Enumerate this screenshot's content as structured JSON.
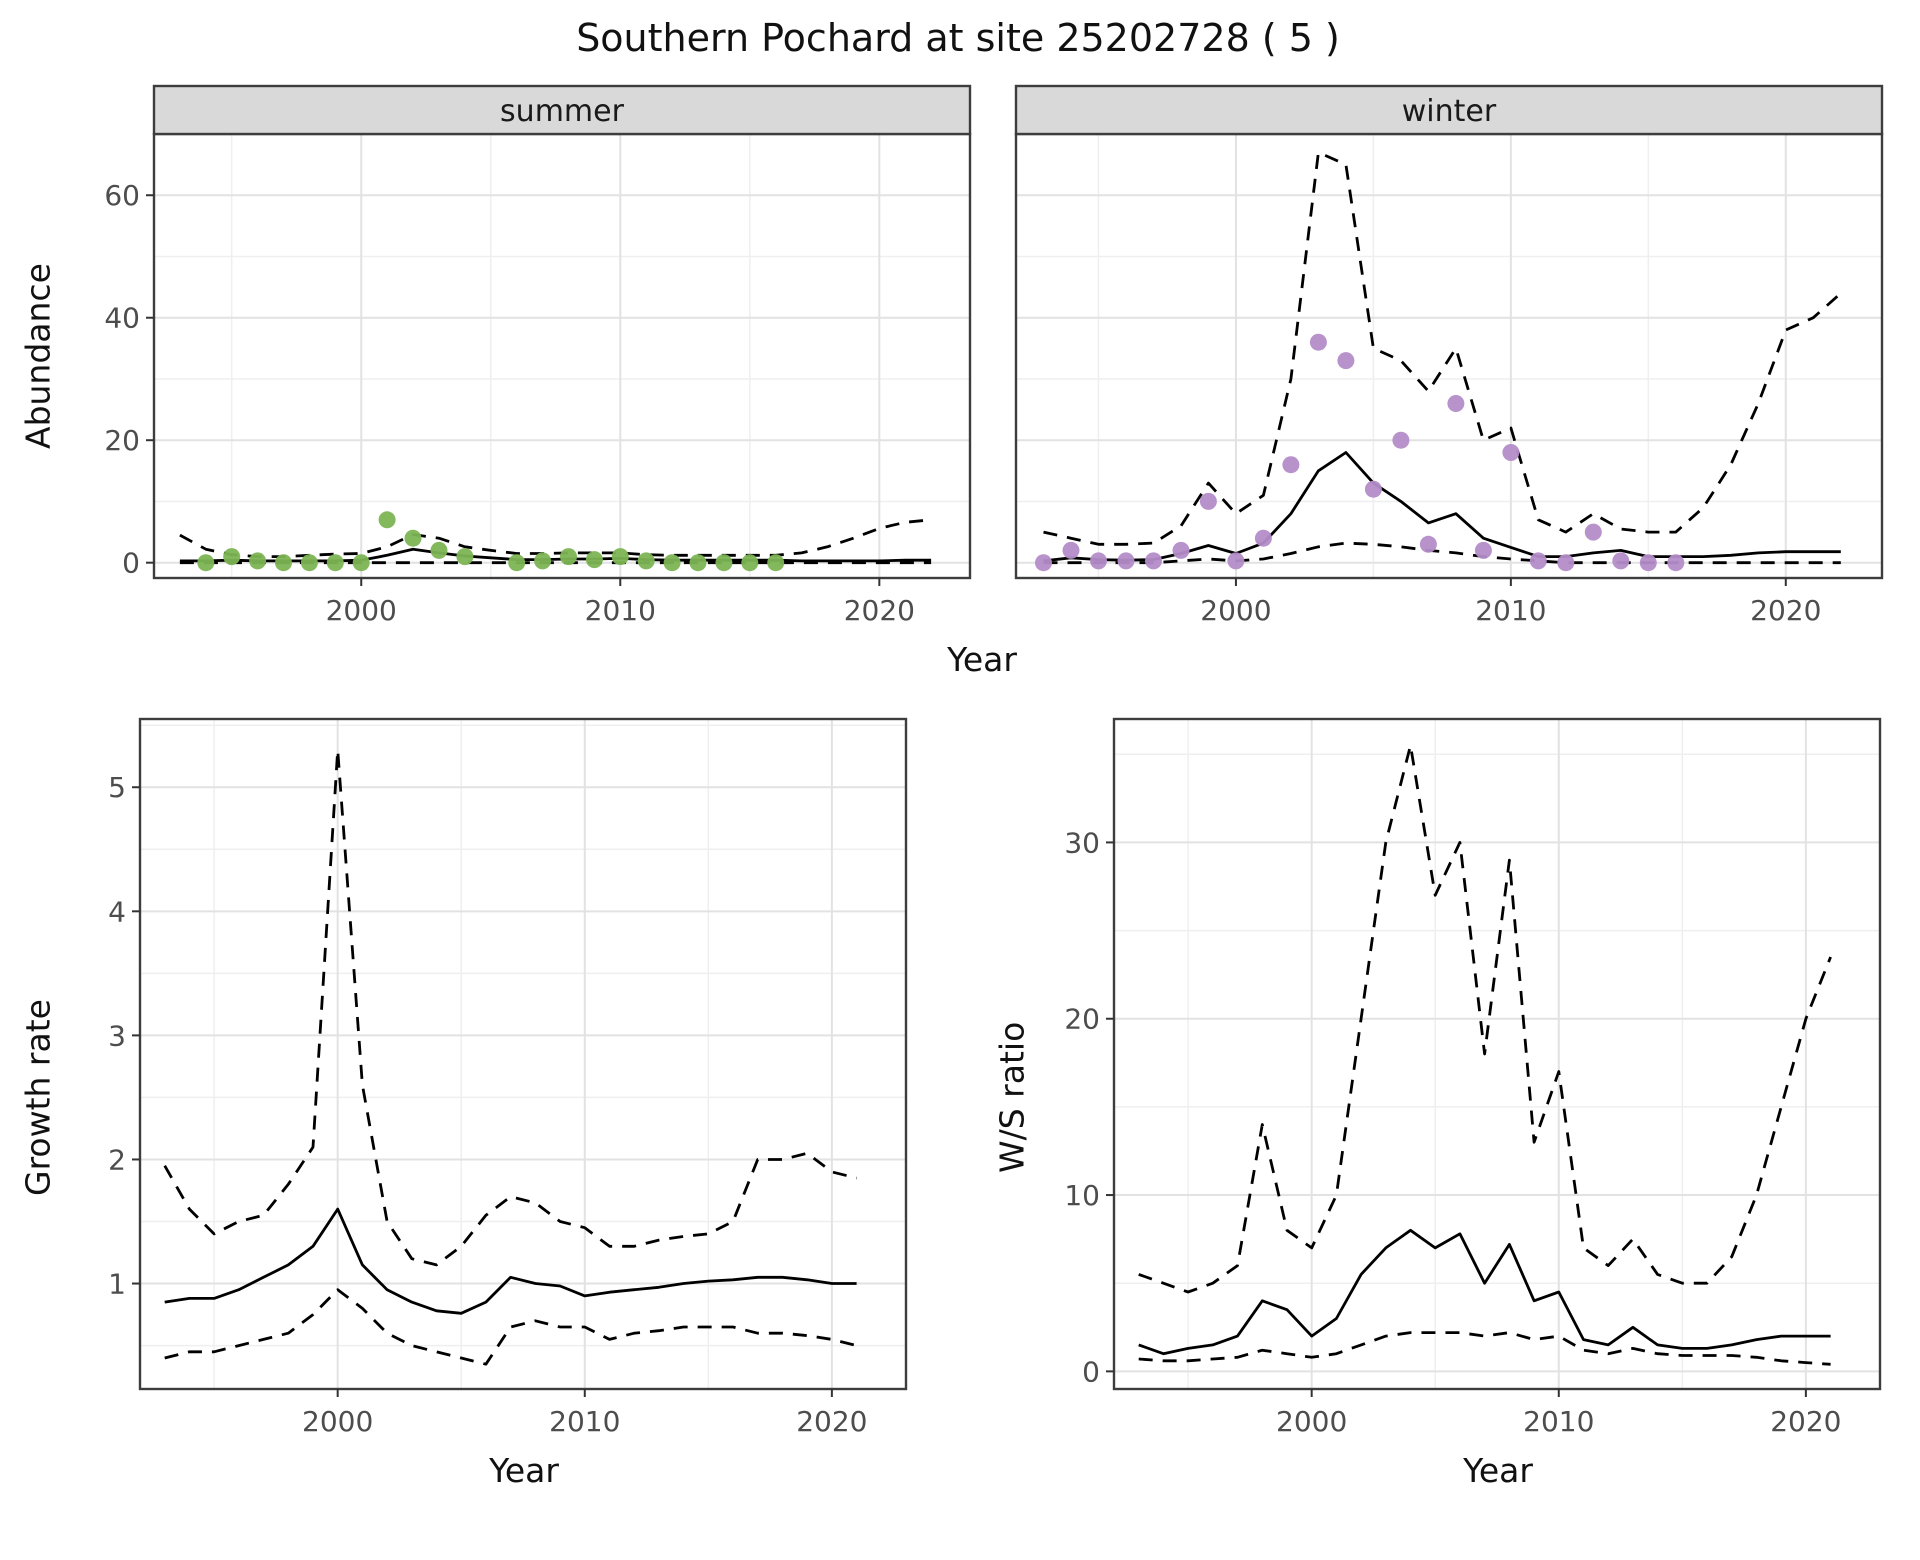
{
  "title": "Southern Pochard at site 25202728 ( 5 )",
  "colors": {
    "summer_points": "#7cb454",
    "winter_points": "#b48cc8",
    "line": "#000000",
    "grid_major": "#e2e2e2",
    "grid_minor": "#efefef",
    "strip_bg": "#d9d9d9",
    "panel_border": "#3d3d3d",
    "tick_text": "#4d4d4d"
  },
  "abundance": {
    "ylabel": "Abundance",
    "xlabel": "Year",
    "facets": [
      "summer",
      "winter"
    ]
  },
  "growth_rate": {
    "ylabel": "Growth rate",
    "xlabel": "Year"
  },
  "ws_ratio": {
    "ylabel": "W/S ratio",
    "xlabel": "Year"
  },
  "chart_data": [
    {
      "id": "summer",
      "type": "line",
      "facet_label": "summer",
      "ylabel": "Abundance",
      "xlabel": "Year",
      "xlim": [
        1992,
        2023.5
      ],
      "ylim": [
        -2.5,
        70
      ],
      "xticks": [
        2000,
        2010,
        2020
      ],
      "xminor": [
        1995,
        2005,
        2015
      ],
      "yticks": [
        0,
        20,
        40,
        60
      ],
      "yminor": [
        10,
        30,
        50
      ],
      "show_y_tick_labels": true,
      "x": [
        1993,
        1994,
        1995,
        1996,
        1997,
        1998,
        1999,
        2000,
        2001,
        2002,
        2003,
        2004,
        2005,
        2006,
        2007,
        2008,
        2009,
        2010,
        2011,
        2012,
        2013,
        2014,
        2015,
        2016,
        2017,
        2018,
        2019,
        2020,
        2021,
        2022
      ],
      "series": [
        {
          "name": "upper_ci",
          "style": "dashed",
          "values": [
            4.5,
            2.2,
            1.3,
            1.0,
            1.0,
            1.2,
            1.4,
            1.5,
            2.6,
            4.6,
            4.0,
            2.6,
            2.0,
            1.5,
            1.5,
            1.6,
            1.6,
            1.6,
            1.3,
            1.2,
            1.2,
            1.2,
            1.2,
            1.2,
            1.6,
            2.6,
            4.0,
            5.6,
            6.6,
            7.0
          ]
        },
        {
          "name": "median",
          "style": "solid",
          "values": [
            0.3,
            0.3,
            0.4,
            0.3,
            0.3,
            0.3,
            0.3,
            0.4,
            1.2,
            2.2,
            1.6,
            1.1,
            0.8,
            0.5,
            0.5,
            0.6,
            0.6,
            0.7,
            0.5,
            0.4,
            0.4,
            0.4,
            0.4,
            0.4,
            0.3,
            0.3,
            0.3,
            0.3,
            0.4,
            0.4
          ]
        },
        {
          "name": "lower_ci",
          "style": "dashed",
          "values": [
            0,
            0,
            0,
            0,
            0,
            0,
            0,
            0,
            0,
            0,
            0,
            0,
            0,
            0,
            0,
            0,
            0,
            0,
            0,
            0,
            0,
            0,
            0,
            0,
            0,
            0,
            0,
            0,
            0,
            0
          ]
        }
      ],
      "points": {
        "name": "observed",
        "color_key": "summer_points",
        "x": [
          1994,
          1995,
          1996,
          1997,
          1998,
          1999,
          2000,
          2001,
          2002,
          2003,
          2004,
          2006,
          2007,
          2008,
          2009,
          2010,
          2011,
          2012,
          2013,
          2014,
          2015,
          2016
        ],
        "y": [
          0,
          1,
          0.3,
          0,
          0,
          0,
          0,
          7,
          4,
          2,
          1,
          0,
          0.3,
          1,
          0.5,
          1,
          0.3,
          0,
          0,
          0,
          0,
          0
        ]
      }
    },
    {
      "id": "winter",
      "type": "line",
      "facet_label": "winter",
      "ylabel": "Abundance",
      "xlabel": "Year",
      "xlim": [
        1992,
        2023.5
      ],
      "ylim": [
        -2.5,
        70
      ],
      "xticks": [
        2000,
        2010,
        2020
      ],
      "xminor": [
        1995,
        2005,
        2015
      ],
      "yticks": [
        0,
        20,
        40,
        60
      ],
      "yminor": [
        10,
        30,
        50
      ],
      "show_y_tick_labels": false,
      "x": [
        1993,
        1994,
        1995,
        1996,
        1997,
        1998,
        1999,
        2000,
        2001,
        2002,
        2003,
        2004,
        2005,
        2006,
        2007,
        2008,
        2009,
        2010,
        2011,
        2012,
        2013,
        2014,
        2015,
        2016,
        2017,
        2018,
        2019,
        2020,
        2021,
        2022
      ],
      "series": [
        {
          "name": "upper_ci",
          "style": "dashed",
          "values": [
            5,
            4,
            3,
            3,
            3.2,
            6,
            13,
            8,
            11,
            30,
            67,
            65,
            35,
            33,
            28,
            35,
            20,
            22,
            7,
            5,
            8,
            5.5,
            5,
            5,
            9,
            16,
            26,
            38,
            40,
            44
          ]
        },
        {
          "name": "median",
          "style": "solid",
          "values": [
            0.3,
            0.8,
            0.5,
            0.4,
            0.5,
            1.5,
            2.8,
            1.5,
            3.2,
            8,
            15,
            18,
            13,
            10,
            6.5,
            8,
            4,
            2.5,
            1,
            1,
            1.6,
            2,
            1,
            1,
            1,
            1.2,
            1.6,
            1.8,
            1.8,
            1.8
          ]
        },
        {
          "name": "lower_ci",
          "style": "dashed",
          "values": [
            0,
            0,
            0,
            0,
            0,
            0.3,
            0.6,
            0.3,
            0.6,
            1.5,
            2.6,
            3.2,
            3,
            2.6,
            2,
            1.6,
            1,
            0.6,
            0.3,
            0,
            0,
            0,
            0,
            0,
            0,
            0,
            0,
            0,
            0,
            0
          ]
        }
      ],
      "points": {
        "name": "observed",
        "color_key": "winter_points",
        "x": [
          1993,
          1994,
          1995,
          1996,
          1997,
          1998,
          1999,
          2000,
          2001,
          2002,
          2003,
          2004,
          2005,
          2006,
          2007,
          2008,
          2009,
          2010,
          2011,
          2012,
          2013,
          2014,
          2015,
          2016
        ],
        "y": [
          0,
          2,
          0.3,
          0.3,
          0.3,
          2,
          10,
          0.3,
          4,
          16,
          36,
          33,
          12,
          20,
          3,
          26,
          2,
          18,
          0.3,
          0,
          5,
          0.3,
          0,
          0
        ]
      }
    },
    {
      "id": "growth",
      "type": "line",
      "facet_label": null,
      "ylabel": "Growth rate",
      "xlabel": "Year",
      "xlim": [
        1992,
        2023
      ],
      "ylim": [
        0.15,
        5.55
      ],
      "xticks": [
        2000,
        2010,
        2020
      ],
      "xminor": [
        1995,
        2005,
        2015
      ],
      "yticks": [
        1,
        2,
        3,
        4,
        5
      ],
      "yminor": [
        0.5,
        1.5,
        2.5,
        3.5,
        4.5,
        5.5
      ],
      "show_y_tick_labels": true,
      "x": [
        1993,
        1994,
        1995,
        1996,
        1997,
        1998,
        1999,
        2000,
        2001,
        2002,
        2003,
        2004,
        2005,
        2006,
        2007,
        2008,
        2009,
        2010,
        2011,
        2012,
        2013,
        2014,
        2015,
        2016,
        2017,
        2018,
        2019,
        2020,
        2021
      ],
      "series": [
        {
          "name": "upper_ci",
          "style": "dashed",
          "values": [
            1.95,
            1.6,
            1.4,
            1.5,
            1.55,
            1.8,
            2.1,
            5.3,
            2.6,
            1.5,
            1.2,
            1.15,
            1.3,
            1.55,
            1.7,
            1.65,
            1.5,
            1.45,
            1.3,
            1.3,
            1.35,
            1.38,
            1.4,
            1.5,
            2.0,
            2.0,
            2.05,
            1.9,
            1.85
          ]
        },
        {
          "name": "median",
          "style": "solid",
          "values": [
            0.85,
            0.88,
            0.88,
            0.95,
            1.05,
            1.15,
            1.3,
            1.6,
            1.15,
            0.95,
            0.85,
            0.78,
            0.76,
            0.85,
            1.05,
            1.0,
            0.98,
            0.9,
            0.93,
            0.95,
            0.97,
            1.0,
            1.02,
            1.03,
            1.05,
            1.05,
            1.03,
            1.0,
            1.0
          ]
        },
        {
          "name": "lower_ci",
          "style": "dashed",
          "values": [
            0.4,
            0.45,
            0.45,
            0.5,
            0.55,
            0.6,
            0.75,
            0.95,
            0.8,
            0.6,
            0.5,
            0.45,
            0.4,
            0.35,
            0.65,
            0.7,
            0.65,
            0.65,
            0.55,
            0.6,
            0.62,
            0.65,
            0.65,
            0.65,
            0.6,
            0.6,
            0.58,
            0.55,
            0.5
          ]
        }
      ],
      "points": null
    },
    {
      "id": "ws",
      "type": "line",
      "facet_label": null,
      "ylabel": "W/S ratio",
      "xlabel": "Year",
      "xlim": [
        1992,
        2023
      ],
      "ylim": [
        -1,
        37
      ],
      "xticks": [
        2000,
        2010,
        2020
      ],
      "xminor": [
        1995,
        2005,
        2015
      ],
      "yticks": [
        0,
        10,
        20,
        30
      ],
      "yminor": [
        5,
        15,
        25,
        35
      ],
      "show_y_tick_labels": true,
      "x": [
        1993,
        1994,
        1995,
        1996,
        1997,
        1998,
        1999,
        2000,
        2001,
        2002,
        2003,
        2004,
        2005,
        2006,
        2007,
        2008,
        2009,
        2010,
        2011,
        2012,
        2013,
        2014,
        2015,
        2016,
        2017,
        2018,
        2019,
        2020,
        2021
      ],
      "series": [
        {
          "name": "upper_ci",
          "style": "dashed",
          "values": [
            5.5,
            5.0,
            4.5,
            5.0,
            6.0,
            14,
            8,
            7,
            10,
            20,
            30,
            35.5,
            27,
            30,
            18,
            29,
            13,
            17,
            7,
            6,
            7.5,
            5.5,
            5,
            5,
            6.5,
            10,
            15,
            20,
            23.5
          ]
        },
        {
          "name": "median",
          "style": "solid",
          "values": [
            1.5,
            1.0,
            1.3,
            1.5,
            2.0,
            4.0,
            3.5,
            2.0,
            3.0,
            5.5,
            7.0,
            8.0,
            7.0,
            7.8,
            5.0,
            7.2,
            4.0,
            4.5,
            1.8,
            1.5,
            2.5,
            1.5,
            1.3,
            1.3,
            1.5,
            1.8,
            2.0,
            2.0,
            2.0
          ]
        },
        {
          "name": "lower_ci",
          "style": "dashed",
          "values": [
            0.7,
            0.6,
            0.6,
            0.7,
            0.8,
            1.2,
            1.0,
            0.8,
            1.0,
            1.5,
            2.0,
            2.2,
            2.2,
            2.2,
            2.0,
            2.2,
            1.8,
            2.0,
            1.2,
            1.0,
            1.3,
            1.0,
            0.9,
            0.9,
            0.9,
            0.8,
            0.6,
            0.5,
            0.4
          ]
        }
      ],
      "points": null
    }
  ]
}
